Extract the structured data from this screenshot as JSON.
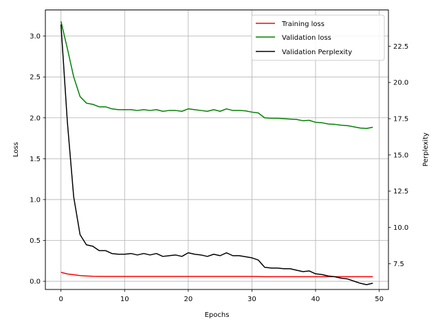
{
  "chart_data": {
    "type": "line",
    "title": "",
    "xlabel": "Epochs",
    "ylabel": "Loss",
    "y2label": "Perplexity",
    "xlim": [
      -2.45,
      51.45
    ],
    "ylim": [
      -0.1,
      3.32
    ],
    "y2lim": [
      5.72,
      25.0
    ],
    "xticks": [
      0,
      10,
      20,
      30,
      40,
      50
    ],
    "yticks": [
      0.0,
      0.5,
      1.0,
      1.5,
      2.0,
      2.5,
      3.0
    ],
    "ytick_labels": [
      "0.0",
      "0.5",
      "1.0",
      "1.5",
      "2.0",
      "2.5",
      "3.0"
    ],
    "y2ticks": [
      7.5,
      10.0,
      12.5,
      15.0,
      17.5,
      20.0,
      22.5
    ],
    "y2tick_labels": [
      "7.5",
      "10.0",
      "12.5",
      "15.0",
      "17.5",
      "20.0",
      "22.5"
    ],
    "grid": true,
    "legend": "top-right",
    "x": [
      0,
      1,
      2,
      3,
      4,
      5,
      6,
      7,
      8,
      9,
      10,
      11,
      12,
      13,
      14,
      15,
      16,
      17,
      18,
      19,
      20,
      21,
      22,
      23,
      24,
      25,
      26,
      27,
      28,
      29,
      30,
      31,
      32,
      33,
      34,
      35,
      36,
      37,
      38,
      39,
      40,
      41,
      42,
      43,
      44,
      45,
      46,
      47,
      48,
      49
    ],
    "series": [
      {
        "name": "Training loss",
        "axis": "left",
        "color": "#ff0000",
        "values": [
          0.11,
          0.09,
          0.08,
          0.07,
          0.065,
          0.062,
          0.061,
          0.06,
          0.06,
          0.06,
          0.06,
          0.06,
          0.06,
          0.06,
          0.06,
          0.06,
          0.06,
          0.06,
          0.06,
          0.06,
          0.06,
          0.06,
          0.06,
          0.06,
          0.06,
          0.06,
          0.06,
          0.06,
          0.06,
          0.06,
          0.06,
          0.058,
          0.056,
          0.056,
          0.056,
          0.056,
          0.056,
          0.056,
          0.056,
          0.056,
          0.056,
          0.056,
          0.056,
          0.056,
          0.056,
          0.056,
          0.056,
          0.056,
          0.056,
          0.056
        ]
      },
      {
        "name": "Validation loss",
        "axis": "left",
        "color": "#008000",
        "values": [
          3.18,
          2.85,
          2.5,
          2.26,
          2.18,
          2.165,
          2.135,
          2.135,
          2.11,
          2.1,
          2.1,
          2.1,
          2.09,
          2.1,
          2.09,
          2.1,
          2.08,
          2.09,
          2.09,
          2.08,
          2.11,
          2.1,
          2.09,
          2.08,
          2.1,
          2.08,
          2.11,
          2.09,
          2.09,
          2.085,
          2.07,
          2.06,
          2.0,
          1.995,
          1.995,
          1.99,
          1.985,
          1.98,
          1.965,
          1.97,
          1.945,
          1.94,
          1.925,
          1.92,
          1.91,
          1.905,
          1.89,
          1.875,
          1.87,
          1.885
        ]
      },
      {
        "name": "Validation Perplexity",
        "axis": "right",
        "color": "#000000",
        "values": [
          24.0,
          17.3,
          12.1,
          9.5,
          8.8,
          8.7,
          8.4,
          8.4,
          8.2,
          8.15,
          8.15,
          8.2,
          8.1,
          8.2,
          8.1,
          8.2,
          8.0,
          8.05,
          8.1,
          8.0,
          8.25,
          8.15,
          8.1,
          8.0,
          8.15,
          8.05,
          8.25,
          8.05,
          8.05,
          7.98,
          7.9,
          7.75,
          7.25,
          7.2,
          7.2,
          7.15,
          7.15,
          7.05,
          6.95,
          7.0,
          6.8,
          6.75,
          6.65,
          6.6,
          6.5,
          6.45,
          6.3,
          6.15,
          6.05,
          6.15
        ]
      }
    ]
  }
}
